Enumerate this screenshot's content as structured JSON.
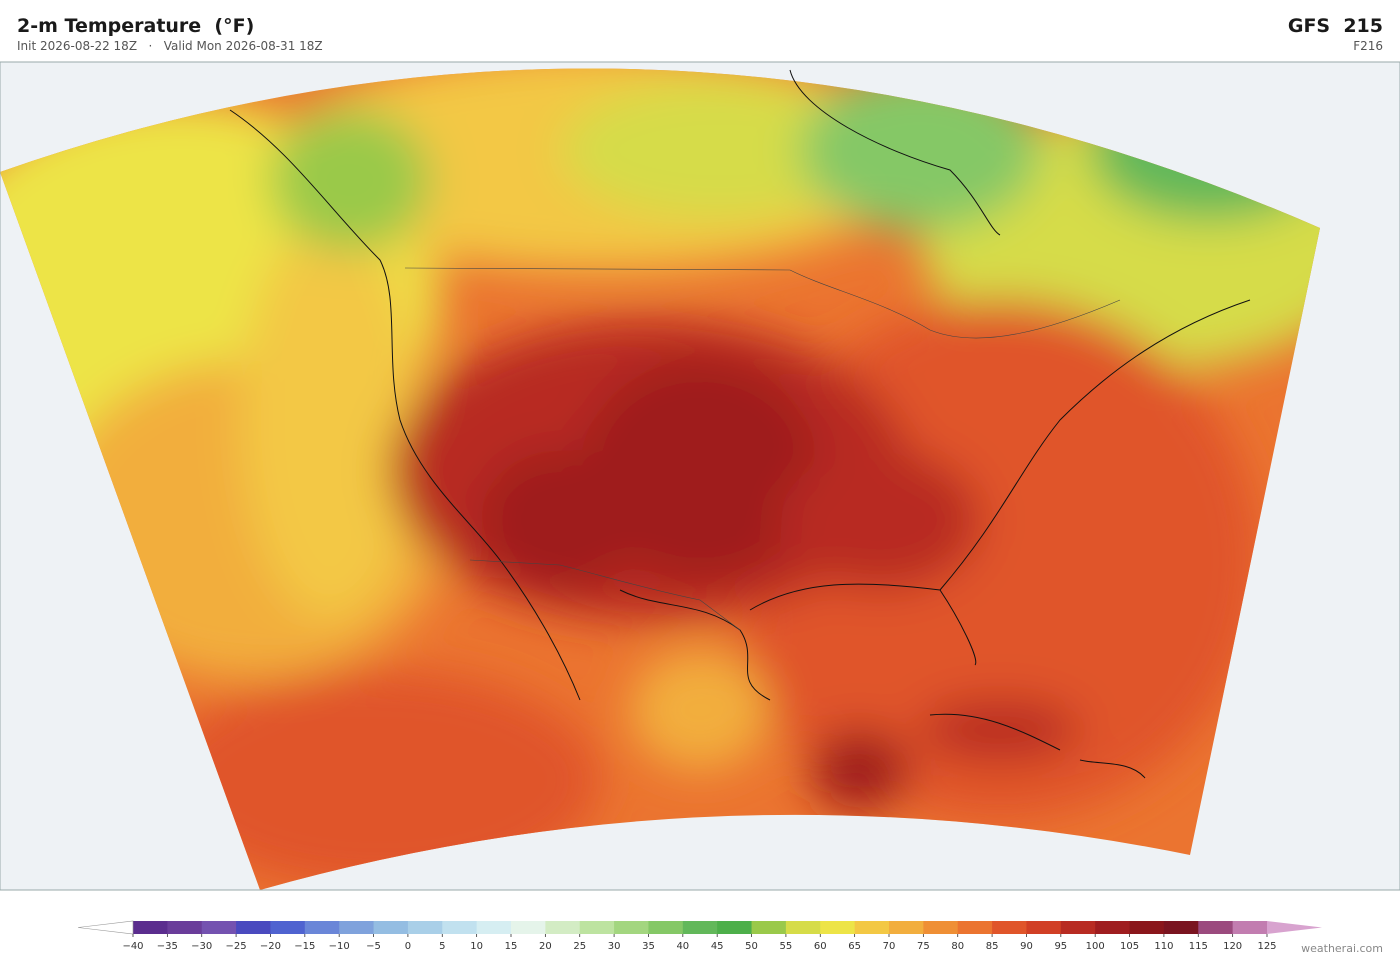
{
  "header": {
    "title": "2-m Temperature  (°F)",
    "subtitle": "Init 2026-08-22 18Z   ·   Valid Mon 2026-08-31 18Z",
    "model": "GFS  215",
    "forecast_hour": "F216"
  },
  "colorbar": {
    "ticks": [
      {
        "value": -40,
        "label": "−40"
      },
      {
        "value": -35,
        "label": "−35"
      },
      {
        "value": -30,
        "label": "−30"
      },
      {
        "value": -25,
        "label": "−25"
      },
      {
        "value": -20,
        "label": "−20"
      },
      {
        "value": -15,
        "label": "−15"
      },
      {
        "value": -10,
        "label": "−10"
      },
      {
        "value": -5,
        "label": "−5"
      },
      0,
      5,
      10,
      15,
      20,
      25,
      30,
      35,
      40,
      45,
      50,
      55,
      60,
      65,
      70,
      75,
      80,
      85,
      90,
      95,
      100,
      105,
      110,
      115,
      120,
      125
    ],
    "colors": [
      "#5b2d8e",
      "#6a3d9a",
      "#7452b0",
      "#4a4abf",
      "#4f63d0",
      "#6a86d8",
      "#7fa2dc",
      "#94bde2",
      "#a9cfe8",
      "#c1e1ef",
      "#d6eef2",
      "#e5f4ea",
      "#d3ecc4",
      "#bde3a0",
      "#a3d67f",
      "#85c866",
      "#62b85a",
      "#4daf4a",
      "#9ac94a",
      "#d6dc48",
      "#ede447",
      "#f3c844",
      "#f2ae3e",
      "#ef8f35",
      "#eb7430",
      "#e0552a",
      "#d13f25",
      "#b82b22",
      "#9f1d1f",
      "#8a161b",
      "#7a1420",
      "#9b4a7e",
      "#c27db0"
    ],
    "under_color": "#ffffff",
    "over_color": "#d8a3cf"
  },
  "footer": {
    "credit": "weatherai.com"
  }
}
